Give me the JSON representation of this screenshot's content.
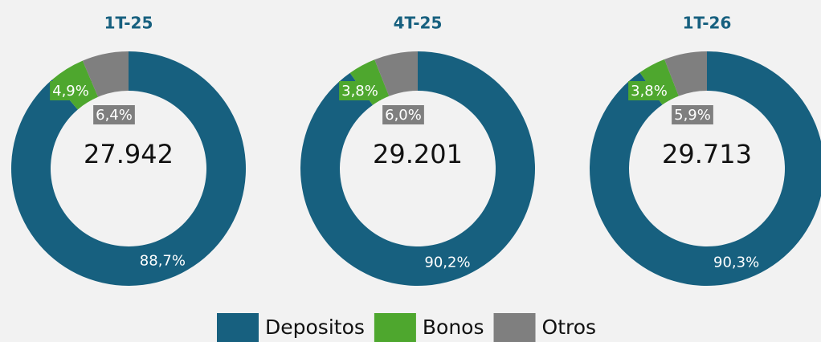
{
  "chart_data": [
    {
      "type": "pie",
      "title": "1T-25",
      "values": [
        88.7,
        4.9,
        6.4
      ],
      "value_labels": [
        "88,7%",
        "4,9%",
        "6,4%"
      ],
      "total": 27942,
      "total_label": "27.942"
    },
    {
      "type": "pie",
      "title": "4T-25",
      "values": [
        90.2,
        3.8,
        6.0
      ],
      "value_labels": [
        "90,2%",
        "3,8%",
        "6,0%"
      ],
      "total": 29201,
      "total_label": "29.201"
    },
    {
      "type": "pie",
      "title": "1T-26",
      "values": [
        90.3,
        3.8,
        5.9
      ],
      "value_labels": [
        "90,3%",
        "3,8%",
        "5,9%"
      ],
      "total": 29713,
      "total_label": "29.713"
    }
  ],
  "legend": {
    "categories": [
      "Depositos",
      "Bonos",
      "Otros"
    ],
    "colors": [
      "#17607f",
      "#4ea72e",
      "#7f7f7f"
    ]
  }
}
